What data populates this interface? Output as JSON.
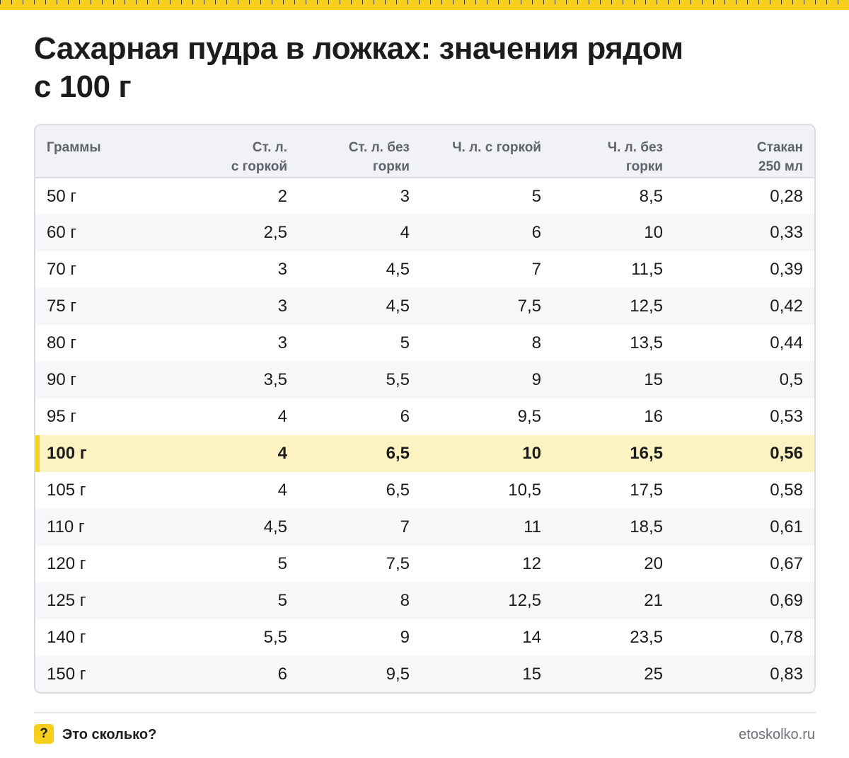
{
  "title_lines": [
    "Сахарная пудра в ложках: значения рядом",
    "с 100 г"
  ],
  "table": {
    "headers": [
      [
        "Граммы"
      ],
      [
        "Ст. л.",
        "с горкой"
      ],
      [
        "Ст. л. без",
        "горки"
      ],
      [
        "Ч. л. с горкой"
      ],
      [
        "Ч. л. без",
        "горки"
      ],
      [
        "Стакан",
        "250 мл"
      ]
    ],
    "rows": [
      [
        "50 г",
        "2",
        "3",
        "5",
        "8,5",
        "0,28"
      ],
      [
        "60 г",
        "2,5",
        "4",
        "6",
        "10",
        "0,33"
      ],
      [
        "70 г",
        "3",
        "4,5",
        "7",
        "11,5",
        "0,39"
      ],
      [
        "75 г",
        "3",
        "4,5",
        "7,5",
        "12,5",
        "0,42"
      ],
      [
        "80 г",
        "3",
        "5",
        "8",
        "13,5",
        "0,44"
      ],
      [
        "90 г",
        "3,5",
        "5,5",
        "9",
        "15",
        "0,5"
      ],
      [
        "95 г",
        "4",
        "6",
        "9,5",
        "16",
        "0,53"
      ],
      [
        "100 г",
        "4",
        "6,5",
        "10",
        "16,5",
        "0,56"
      ],
      [
        "105 г",
        "4",
        "6,5",
        "10,5",
        "17,5",
        "0,58"
      ],
      [
        "110 г",
        "4,5",
        "7",
        "11",
        "18,5",
        "0,61"
      ],
      [
        "120 г",
        "5",
        "7,5",
        "12",
        "20",
        "0,67"
      ],
      [
        "125 г",
        "5",
        "8",
        "12,5",
        "21",
        "0,69"
      ],
      [
        "140 г",
        "5,5",
        "9",
        "14",
        "23,5",
        "0,78"
      ],
      [
        "150 г",
        "6",
        "9,5",
        "15",
        "25",
        "0,83"
      ]
    ],
    "highlight_row": 7
  },
  "footer": {
    "logo_glyph": "?",
    "logo_text": "Это сколько?",
    "site": "etoskolko.ru"
  },
  "colors": {
    "accent": "#f8cf1d",
    "highlight_row_bg": "#fdf3c2",
    "header_bg": "#f0f2f5",
    "stripe_bg": "#f6f7f9",
    "border": "#d9dce0"
  }
}
